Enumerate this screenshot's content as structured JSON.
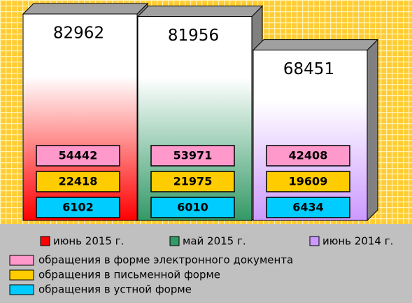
{
  "chart_data": {
    "type": "bar",
    "categories": [
      "июнь 2015 г.",
      "май 2015 г.",
      "июнь 2014 г."
    ],
    "category_colors": [
      "#ff0000",
      "#339966",
      "#cc99ff"
    ],
    "values": [
      82962,
      81956,
      68451
    ],
    "series": [
      {
        "name": "обращения в форме электронного документа",
        "color": "#ff99cc",
        "values": [
          54442,
          53971,
          42408
        ]
      },
      {
        "name": "обращения в письменной форме",
        "color": "#ffcc00",
        "values": [
          22418,
          21975,
          19609
        ]
      },
      {
        "name": "обращения в устной форме",
        "color": "#00ccff",
        "values": [
          6102,
          6010,
          6434
        ]
      }
    ]
  }
}
